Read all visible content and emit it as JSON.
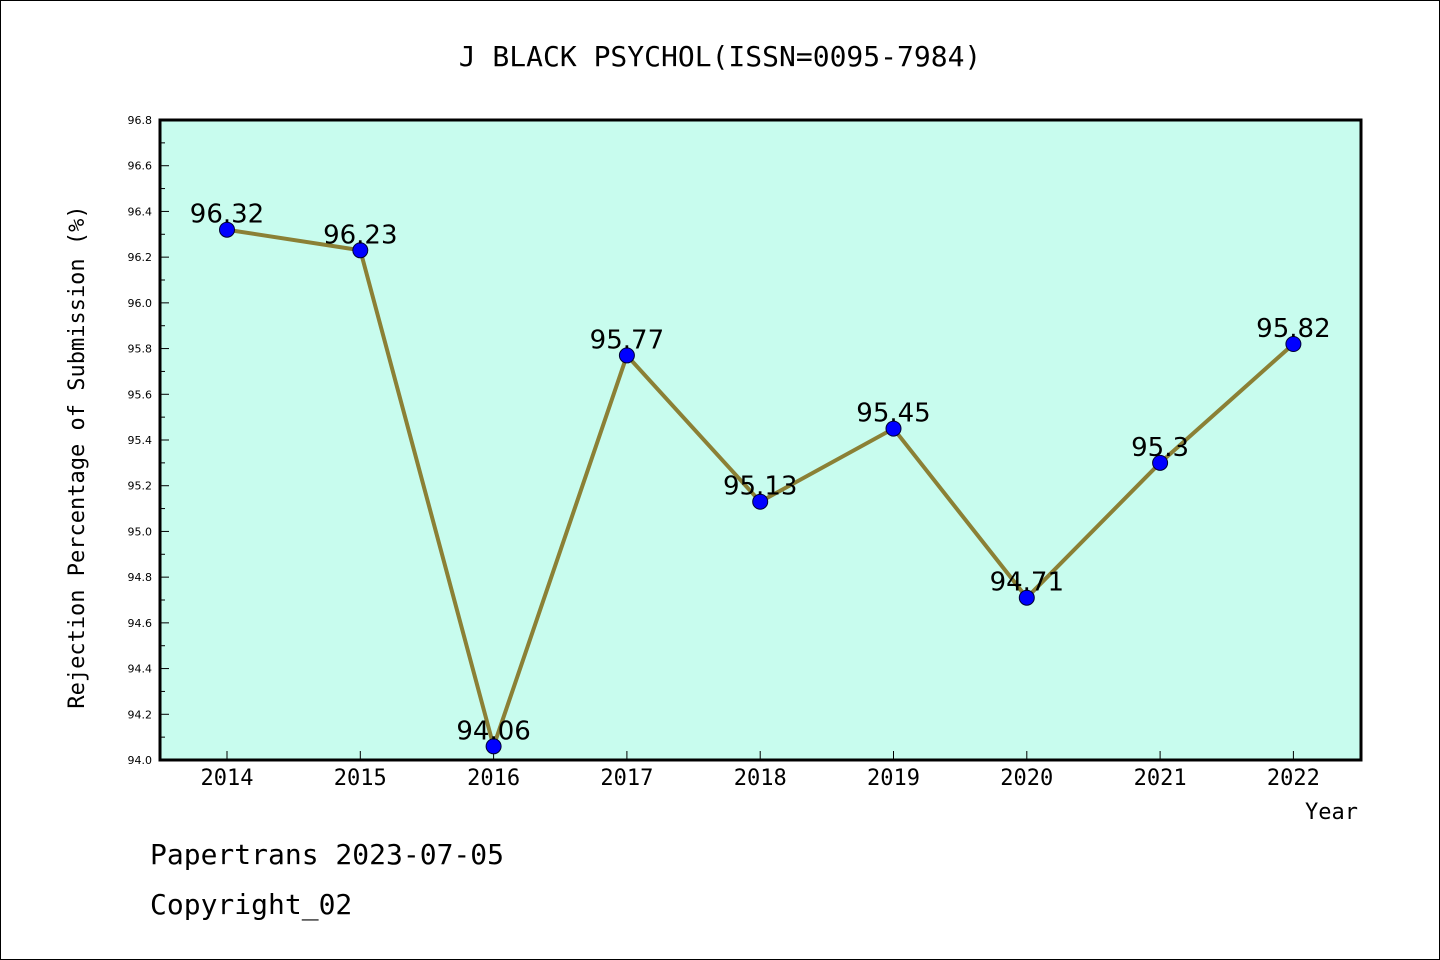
{
  "chart_data": {
    "type": "line",
    "title": "J BLACK PSYCHOL(ISSN=0095-7984)",
    "xlabel": "Year",
    "ylabel": "Rejection Percentage of Submission (%)",
    "categories": [
      "2014",
      "2015",
      "2016",
      "2017",
      "2018",
      "2019",
      "2020",
      "2021",
      "2022"
    ],
    "values": [
      96.32,
      96.23,
      94.06,
      95.77,
      95.13,
      95.45,
      94.71,
      95.3,
      95.82
    ],
    "data_labels": [
      "96.32",
      "96.23",
      "94.06",
      "95.77",
      "95.13",
      "95.45",
      "94.71",
      "95.3",
      "95.82"
    ],
    "ylim": [
      94.0,
      96.8
    ],
    "yticks": [
      "94.0",
      "94.2",
      "94.4",
      "94.6",
      "94.8",
      "95.0",
      "95.2",
      "95.4",
      "95.6",
      "95.8",
      "96.0",
      "96.2",
      "96.4",
      "96.6",
      "96.8"
    ],
    "grid": false,
    "plot_background": "#c8fcee",
    "line_color": "#8b8035",
    "marker_color": "#0000ff"
  },
  "footer": {
    "line1": "Papertrans 2023-07-05",
    "line2": "Copyright_02"
  }
}
